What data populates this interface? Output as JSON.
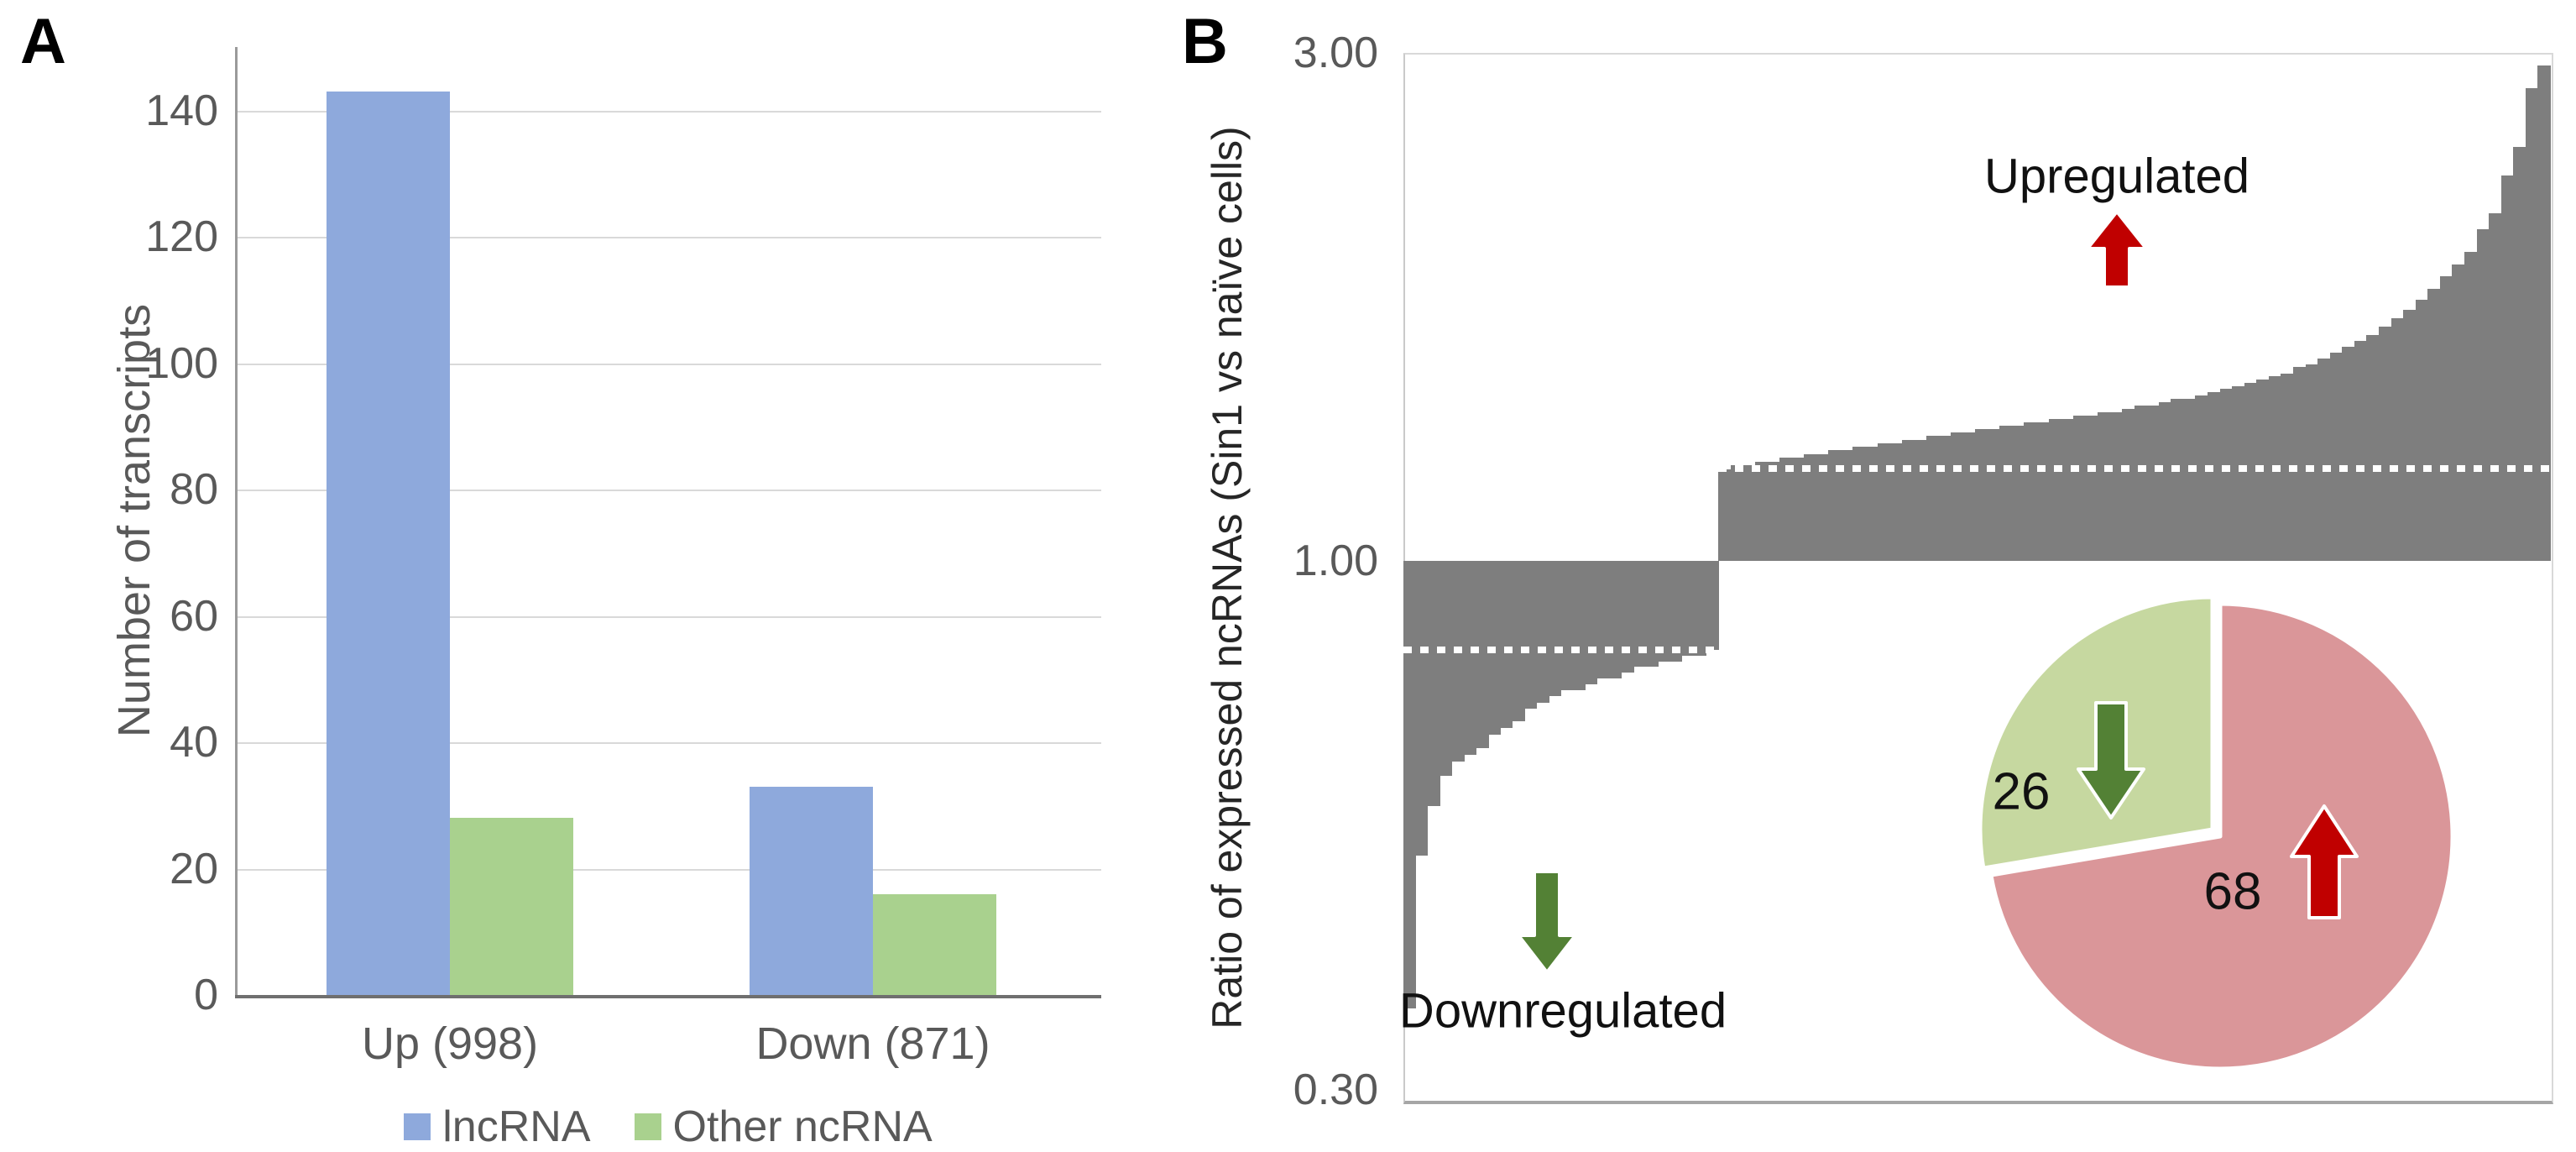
{
  "panels": {
    "a_label": "A",
    "b_label": "B"
  },
  "chart_data": [
    {
      "id": "transcripts_bar",
      "type": "bar",
      "title": "",
      "xlabel": "",
      "ylabel": "Number of transcripts",
      "categories": [
        "Up (998)",
        "Down (871)"
      ],
      "series": [
        {
          "name": "lncRNA",
          "color": "#8ea9dc",
          "values": [
            143,
            33
          ]
        },
        {
          "name": "Other ncRNA",
          "color": "#a9d18e",
          "values": [
            28,
            16
          ]
        }
      ],
      "yticks": [
        "0",
        "20",
        "40",
        "60",
        "80",
        "100",
        "120",
        "140"
      ],
      "ytick_values": [
        0,
        20,
        40,
        60,
        80,
        100,
        120,
        140
      ],
      "ylim": [
        0,
        150
      ],
      "grid": true,
      "legend_position": "bottom"
    },
    {
      "id": "ncrna_ratio_waterfall",
      "type": "bar",
      "subtype": "sorted-ratio-waterfall",
      "ylabel": "Ratio of expressed ncRNAs (Sin1 vs naïve cells)",
      "yscale": "log",
      "ylim": [
        0.3,
        3.0
      ],
      "yticks": [
        "3.00",
        "1.00",
        "0.30"
      ],
      "ytick_values": [
        3.0,
        1.0,
        0.3
      ],
      "baseline": 1.0,
      "bar_color": "#7e7e7e",
      "dotted_line_color": "#ffffff",
      "dotted_threshold_up": 1.22,
      "dotted_threshold_down": 0.82,
      "annotations": {
        "up": "Upregulated",
        "down": "Downregulated"
      },
      "values_down": [
        0.37,
        0.52,
        0.58,
        0.62,
        0.64,
        0.65,
        0.66,
        0.68,
        0.69,
        0.7,
        0.72,
        0.73,
        0.74,
        0.75,
        0.75,
        0.76,
        0.77,
        0.77,
        0.78,
        0.79,
        0.79,
        0.8,
        0.8,
        0.81,
        0.81,
        0.82
      ],
      "values_up": [
        1.22,
        1.23,
        1.23,
        1.24,
        1.24,
        1.25,
        1.25,
        1.26,
        1.26,
        1.27,
        1.27,
        1.28,
        1.28,
        1.29,
        1.29,
        1.3,
        1.3,
        1.31,
        1.31,
        1.32,
        1.32,
        1.33,
        1.33,
        1.34,
        1.34,
        1.35,
        1.35,
        1.36,
        1.36,
        1.37,
        1.37,
        1.38,
        1.38,
        1.39,
        1.4,
        1.4,
        1.41,
        1.42,
        1.42,
        1.43,
        1.44,
        1.45,
        1.46,
        1.47,
        1.48,
        1.49,
        1.5,
        1.52,
        1.53,
        1.55,
        1.57,
        1.59,
        1.61,
        1.63,
        1.66,
        1.69,
        1.72,
        1.76,
        1.8,
        1.85,
        1.9,
        1.95,
        2.05,
        2.12,
        2.3,
        2.45,
        2.78,
        2.92
      ],
      "pie": {
        "type": "pie",
        "slices": [
          {
            "name": "upregulated",
            "value": 68,
            "label": "68",
            "color": "#da9699",
            "arrow": "up",
            "arrow_color": "#c00000"
          },
          {
            "name": "downregulated",
            "value": 26,
            "label": "26",
            "color": "#c6d8a0",
            "arrow": "down",
            "arrow_color": "#538135"
          }
        ],
        "border_color": "#ffffff"
      }
    }
  ]
}
